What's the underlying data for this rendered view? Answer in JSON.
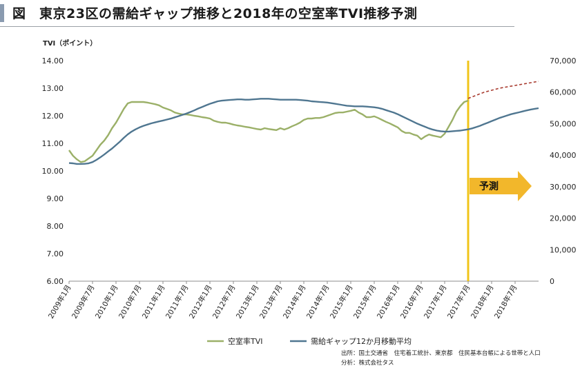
{
  "header": {
    "title": "図　東京23区の需給ギャップ推移と2018年の空室率TVI推移予測"
  },
  "chart_data": {
    "type": "line",
    "left_axis_unit": "TVI（ポイント）",
    "left_axis": {
      "min": 6,
      "max": 14,
      "ticks": [
        "6.00",
        "7.00",
        "8.00",
        "9.00",
        "10.00",
        "11.00",
        "12.00",
        "13.00",
        "14.00"
      ]
    },
    "right_axis": {
      "min": 0,
      "max": 70000,
      "ticks": [
        "0",
        "10,000",
        "20,000",
        "30,000",
        "40,000",
        "50,000",
        "60,000",
        "70,000"
      ]
    },
    "x_range": [
      0,
      120
    ],
    "x_ticks": [
      {
        "x": 0,
        "label": "2009年1月"
      },
      {
        "x": 6,
        "label": "2009年7月"
      },
      {
        "x": 12,
        "label": "2010年1月"
      },
      {
        "x": 18,
        "label": "2010年7月"
      },
      {
        "x": 24,
        "label": "2011年1月"
      },
      {
        "x": 30,
        "label": "2011年7月"
      },
      {
        "x": 36,
        "label": "2012年1月"
      },
      {
        "x": 42,
        "label": "2012年7月"
      },
      {
        "x": 48,
        "label": "2013年1月"
      },
      {
        "x": 54,
        "label": "2013年7月"
      },
      {
        "x": 60,
        "label": "2014年1月"
      },
      {
        "x": 66,
        "label": "2014年7月"
      },
      {
        "x": 72,
        "label": "2015年1月"
      },
      {
        "x": 78,
        "label": "2015年7月"
      },
      {
        "x": 84,
        "label": "2016年1月"
      },
      {
        "x": 90,
        "label": "2016年7月"
      },
      {
        "x": 96,
        "label": "2017年1月"
      },
      {
        "x": 102,
        "label": "2017年7月"
      },
      {
        "x": 108,
        "label": "2018年1月"
      },
      {
        "x": 114,
        "label": "2018年7月"
      }
    ],
    "forecast_start_x": 102,
    "forecast_label": "予測",
    "series": [
      {
        "name": "空室率TVI",
        "axis": "left",
        "color": "#9bb068",
        "points": [
          [
            0,
            10.75
          ],
          [
            1,
            10.55
          ],
          [
            2,
            10.42
          ],
          [
            3,
            10.32
          ],
          [
            4,
            10.35
          ],
          [
            5,
            10.45
          ],
          [
            6,
            10.55
          ],
          [
            7,
            10.75
          ],
          [
            8,
            10.95
          ],
          [
            9,
            11.1
          ],
          [
            10,
            11.3
          ],
          [
            11,
            11.55
          ],
          [
            12,
            11.75
          ],
          [
            13,
            12.0
          ],
          [
            14,
            12.25
          ],
          [
            15,
            12.45
          ],
          [
            16,
            12.5
          ],
          [
            17,
            12.5
          ],
          [
            18,
            12.5
          ],
          [
            19,
            12.5
          ],
          [
            20,
            12.48
          ],
          [
            21,
            12.45
          ],
          [
            22,
            12.42
          ],
          [
            23,
            12.38
          ],
          [
            24,
            12.3
          ],
          [
            25,
            12.25
          ],
          [
            26,
            12.2
          ],
          [
            27,
            12.12
          ],
          [
            28,
            12.08
          ],
          [
            29,
            12.05
          ],
          [
            30,
            12.05
          ],
          [
            31,
            12.03
          ],
          [
            32,
            12.0
          ],
          [
            33,
            11.98
          ],
          [
            34,
            11.95
          ],
          [
            35,
            11.93
          ],
          [
            36,
            11.9
          ],
          [
            37,
            11.82
          ],
          [
            38,
            11.78
          ],
          [
            39,
            11.75
          ],
          [
            40,
            11.75
          ],
          [
            41,
            11.72
          ],
          [
            42,
            11.68
          ],
          [
            43,
            11.65
          ],
          [
            44,
            11.63
          ],
          [
            45,
            11.6
          ],
          [
            46,
            11.58
          ],
          [
            47,
            11.55
          ],
          [
            48,
            11.52
          ],
          [
            49,
            11.5
          ],
          [
            50,
            11.55
          ],
          [
            51,
            11.52
          ],
          [
            52,
            11.5
          ],
          [
            53,
            11.48
          ],
          [
            54,
            11.55
          ],
          [
            55,
            11.5
          ],
          [
            56,
            11.55
          ],
          [
            57,
            11.62
          ],
          [
            58,
            11.68
          ],
          [
            59,
            11.75
          ],
          [
            60,
            11.85
          ],
          [
            61,
            11.9
          ],
          [
            62,
            11.9
          ],
          [
            63,
            11.92
          ],
          [
            64,
            11.92
          ],
          [
            65,
            11.95
          ],
          [
            66,
            12.0
          ],
          [
            67,
            12.05
          ],
          [
            68,
            12.1
          ],
          [
            69,
            12.12
          ],
          [
            70,
            12.12
          ],
          [
            71,
            12.15
          ],
          [
            72,
            12.18
          ],
          [
            73,
            12.22
          ],
          [
            74,
            12.12
          ],
          [
            75,
            12.05
          ],
          [
            76,
            11.95
          ],
          [
            77,
            11.95
          ],
          [
            78,
            11.98
          ],
          [
            79,
            11.92
          ],
          [
            80,
            11.85
          ],
          [
            81,
            11.78
          ],
          [
            82,
            11.72
          ],
          [
            83,
            11.65
          ],
          [
            84,
            11.58
          ],
          [
            85,
            11.45
          ],
          [
            86,
            11.38
          ],
          [
            87,
            11.38
          ],
          [
            88,
            11.32
          ],
          [
            89,
            11.28
          ],
          [
            90,
            11.15
          ],
          [
            91,
            11.25
          ],
          [
            92,
            11.32
          ],
          [
            93,
            11.28
          ],
          [
            94,
            11.25
          ],
          [
            95,
            11.22
          ],
          [
            96,
            11.35
          ],
          [
            97,
            11.6
          ],
          [
            98,
            11.85
          ],
          [
            99,
            12.15
          ],
          [
            100,
            12.35
          ],
          [
            101,
            12.5
          ],
          [
            102,
            12.55
          ]
        ]
      },
      {
        "name": "需給ギャップ12か月移動平均",
        "axis": "right",
        "color": "#4f7690",
        "points": [
          [
            0,
            37500
          ],
          [
            1,
            37400
          ],
          [
            2,
            37200
          ],
          [
            3,
            37200
          ],
          [
            4,
            37250
          ],
          [
            5,
            37400
          ],
          [
            6,
            37800
          ],
          [
            7,
            38500
          ],
          [
            8,
            39300
          ],
          [
            9,
            40200
          ],
          [
            10,
            41200
          ],
          [
            11,
            42100
          ],
          [
            12,
            43200
          ],
          [
            13,
            44300
          ],
          [
            14,
            45500
          ],
          [
            15,
            46600
          ],
          [
            16,
            47500
          ],
          [
            17,
            48200
          ],
          [
            18,
            48800
          ],
          [
            19,
            49300
          ],
          [
            20,
            49700
          ],
          [
            21,
            50100
          ],
          [
            22,
            50400
          ],
          [
            23,
            50700
          ],
          [
            24,
            51000
          ],
          [
            25,
            51300
          ],
          [
            26,
            51600
          ],
          [
            27,
            52000
          ],
          [
            28,
            52400
          ],
          [
            29,
            52800
          ],
          [
            30,
            53200
          ],
          [
            31,
            53700
          ],
          [
            32,
            54200
          ],
          [
            33,
            54800
          ],
          [
            34,
            55300
          ],
          [
            35,
            55800
          ],
          [
            36,
            56300
          ],
          [
            37,
            56700
          ],
          [
            38,
            57100
          ],
          [
            39,
            57300
          ],
          [
            40,
            57400
          ],
          [
            41,
            57500
          ],
          [
            42,
            57600
          ],
          [
            43,
            57700
          ],
          [
            44,
            57700
          ],
          [
            45,
            57600
          ],
          [
            46,
            57600
          ],
          [
            47,
            57700
          ],
          [
            48,
            57800
          ],
          [
            49,
            57900
          ],
          [
            50,
            57900
          ],
          [
            51,
            57900
          ],
          [
            52,
            57800
          ],
          [
            53,
            57700
          ],
          [
            54,
            57600
          ],
          [
            55,
            57600
          ],
          [
            56,
            57600
          ],
          [
            57,
            57600
          ],
          [
            58,
            57600
          ],
          [
            59,
            57500
          ],
          [
            60,
            57400
          ],
          [
            61,
            57300
          ],
          [
            62,
            57100
          ],
          [
            63,
            57000
          ],
          [
            64,
            56900
          ],
          [
            65,
            56800
          ],
          [
            66,
            56700
          ],
          [
            67,
            56500
          ],
          [
            68,
            56300
          ],
          [
            69,
            56100
          ],
          [
            70,
            55900
          ],
          [
            71,
            55700
          ],
          [
            72,
            55600
          ],
          [
            73,
            55500
          ],
          [
            74,
            55500
          ],
          [
            75,
            55500
          ],
          [
            76,
            55400
          ],
          [
            77,
            55300
          ],
          [
            78,
            55200
          ],
          [
            79,
            55000
          ],
          [
            80,
            54700
          ],
          [
            81,
            54300
          ],
          [
            82,
            53900
          ],
          [
            83,
            53500
          ],
          [
            84,
            53000
          ],
          [
            85,
            52400
          ],
          [
            86,
            51800
          ],
          [
            87,
            51200
          ],
          [
            88,
            50600
          ],
          [
            89,
            50000
          ],
          [
            90,
            49500
          ],
          [
            91,
            49000
          ],
          [
            92,
            48500
          ],
          [
            93,
            48100
          ],
          [
            94,
            47800
          ],
          [
            95,
            47600
          ],
          [
            96,
            47500
          ],
          [
            97,
            47500
          ],
          [
            98,
            47600
          ],
          [
            99,
            47700
          ],
          [
            100,
            47800
          ],
          [
            101,
            48000
          ],
          [
            102,
            48200
          ],
          [
            103,
            48500
          ],
          [
            104,
            48900
          ],
          [
            105,
            49300
          ],
          [
            106,
            49800
          ],
          [
            107,
            50300
          ],
          [
            108,
            50800
          ],
          [
            109,
            51300
          ],
          [
            110,
            51800
          ],
          [
            111,
            52200
          ],
          [
            112,
            52600
          ],
          [
            113,
            53000
          ],
          [
            114,
            53300
          ],
          [
            115,
            53600
          ],
          [
            116,
            53900
          ],
          [
            117,
            54200
          ],
          [
            118,
            54500
          ],
          [
            119,
            54700
          ],
          [
            120,
            54900
          ]
        ]
      },
      {
        "name": "",
        "axis": "left",
        "color": "#a83a2e",
        "style": "dashed",
        "points": [
          [
            102,
            12.63
          ],
          [
            106,
            12.85
          ],
          [
            110,
            13.0
          ],
          [
            114,
            13.1
          ],
          [
            118,
            13.2
          ],
          [
            120,
            13.25
          ]
        ]
      }
    ],
    "legend": [
      {
        "label": "空室率TVI",
        "color": "#9bb068"
      },
      {
        "label": "需給ギャップ12か月移動平均",
        "color": "#4f7690"
      }
    ],
    "legend_position": "bottom",
    "grid": false
  },
  "source": {
    "line1": "出所：国土交通省　住宅着工統計、東京都　住民基本台帳による世帯と人口",
    "line2": "分析：株式会社タス"
  }
}
